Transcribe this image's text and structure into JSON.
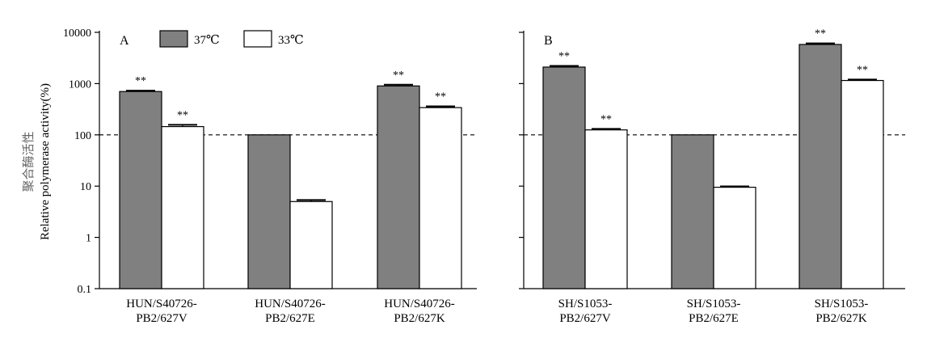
{
  "y_axis_label_cn": "聚合酶活性",
  "y_axis_label_en": "Relative polymerase activity(%)",
  "legend": [
    {
      "label": "37℃",
      "color": "#808080"
    },
    {
      "label": "33℃",
      "color": "#ffffff"
    }
  ],
  "reference_line": 100,
  "chart_data": [
    {
      "type": "bar",
      "panel_label": "A",
      "yscale": "log",
      "ylim": [
        0.1,
        10000
      ],
      "yticks": [
        "0.1",
        "1",
        "10",
        "100",
        "1000",
        "10000"
      ],
      "categories": [
        "HUN/S40726-\nPB2/627V",
        "HUN/S40726-\nPB2/627E",
        "HUN/S40726-\nPB2/627K"
      ],
      "series": [
        {
          "name": "37℃",
          "color": "#808080",
          "values": [
            700,
            100,
            900
          ],
          "errors": [
            30,
            0,
            50
          ],
          "significance": [
            "**",
            "",
            "**"
          ]
        },
        {
          "name": "33℃",
          "color": "#ffffff",
          "values": [
            145,
            5,
            340
          ],
          "errors": [
            12,
            0.35,
            20
          ],
          "significance": [
            "**",
            "",
            "**"
          ]
        }
      ]
    },
    {
      "type": "bar",
      "panel_label": "B",
      "yscale": "log",
      "ylim": [
        0.1,
        10000
      ],
      "categories": [
        "SH/S1053-\nPB2/627V",
        "SH/S1053-\nPB2/627E",
        "SH/S1053-\nPB2/627K"
      ],
      "series": [
        {
          "name": "37℃",
          "color": "#808080",
          "values": [
            2100,
            100,
            5800
          ],
          "errors": [
            120,
            0,
            300
          ],
          "significance": [
            "**",
            "",
            "**"
          ]
        },
        {
          "name": "33℃",
          "color": "#ffffff",
          "values": [
            125,
            9.5,
            1150
          ],
          "errors": [
            6,
            0.4,
            50
          ],
          "significance": [
            "**",
            "",
            "**"
          ]
        }
      ]
    }
  ]
}
